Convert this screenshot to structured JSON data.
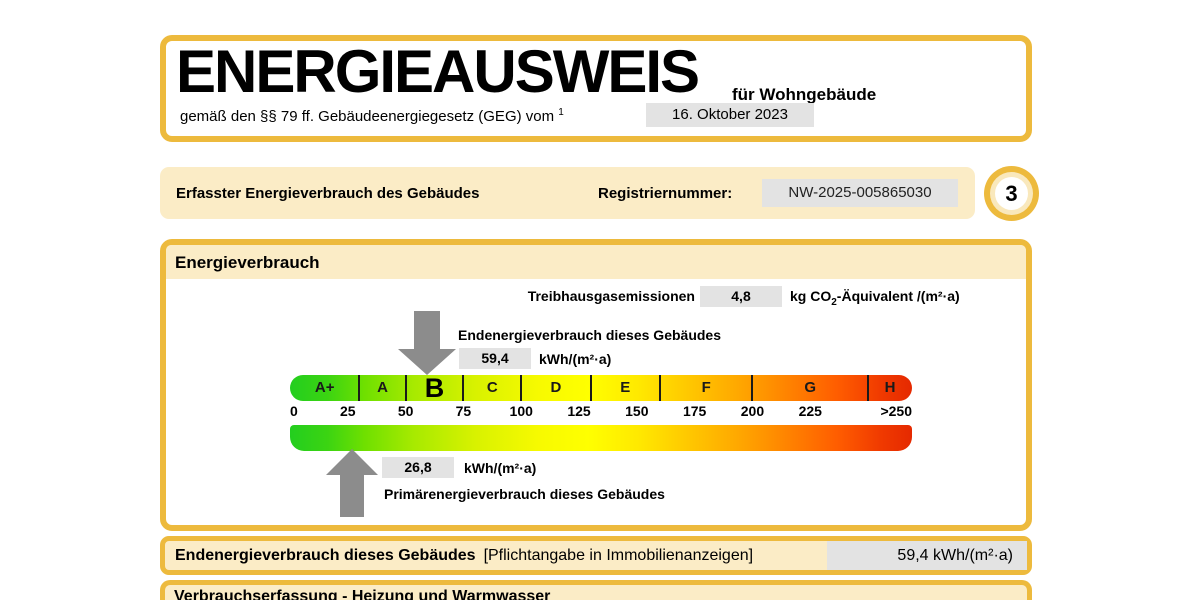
{
  "header": {
    "title": "ENERGIEAUSWEIS",
    "subtitle": "für Wohngebäude",
    "law_text": "gemäß den §§ 79 ff. Gebäudeenergiegesetz (GEG) vom",
    "law_footnote": "1",
    "law_date": "16. Oktober 2023"
  },
  "registration": {
    "label": "Erfasster Energieverbrauch des Gebäudes",
    "number_label": "Registriernummer:",
    "number": "NW-2025-005865030",
    "page_number": "3"
  },
  "section": {
    "title": "Energieverbrauch",
    "ghg_label": "Treibhausgasemissionen",
    "ghg_value": "4,8",
    "ghg_unit_prefix": "kg CO",
    "ghg_unit_sub": "2",
    "ghg_unit_suffix": "-Äquivalent /(m²·a)",
    "end_energy_label": "Endenergieverbrauch dieses Gebäudes",
    "end_energy_value": "59,4",
    "end_energy_unit": "kWh/(m²·a)",
    "primary_energy_value": "26,8",
    "primary_energy_unit": "kWh/(m²·a)",
    "primary_energy_label": "Primärenergieverbrauch dieses Gebäudes"
  },
  "scale": {
    "selected_class": "B",
    "end_energy_value": 59.4,
    "primary_energy_value": 26.8,
    "axis_max": 269,
    "classes": [
      {
        "label": "A+",
        "from": 0,
        "to": 30
      },
      {
        "label": "A",
        "from": 30,
        "to": 50
      },
      {
        "label": "B",
        "from": 50,
        "to": 75
      },
      {
        "label": "C",
        "from": 75,
        "to": 100
      },
      {
        "label": "D",
        "from": 100,
        "to": 130
      },
      {
        "label": "E",
        "from": 130,
        "to": 160
      },
      {
        "label": "F",
        "from": 160,
        "to": 200
      },
      {
        "label": "G",
        "from": 200,
        "to": 250
      },
      {
        "label": "H",
        "from": 250,
        "to": 269
      }
    ],
    "ticks": [
      {
        "label": "0",
        "value": 0,
        "align": "left"
      },
      {
        "label": "25",
        "value": 25,
        "align": "center"
      },
      {
        "label": "50",
        "value": 50,
        "align": "center"
      },
      {
        "label": "75",
        "value": 75,
        "align": "center"
      },
      {
        "label": "100",
        "value": 100,
        "align": "center"
      },
      {
        "label": "125",
        "value": 125,
        "align": "center"
      },
      {
        "label": "150",
        "value": 150,
        "align": "center"
      },
      {
        "label": "175",
        "value": 175,
        "align": "center"
      },
      {
        "label": "200",
        "value": 200,
        "align": "center"
      },
      {
        "label": "225",
        "value": 225,
        "align": "center"
      },
      {
        "label": ">250",
        "value": 269,
        "align": "right"
      }
    ]
  },
  "info_row": {
    "label": "Endenergieverbrauch dieses Gebäudes",
    "bracket": "[Pflichtangabe in Immobilienanzeigen]",
    "value": "59,4 kWh/(m²·a)"
  },
  "next_section": {
    "title": "Verbrauchserfassung - Heizung und Warmwasser"
  },
  "colors": {
    "gold_border": "#EDBA3D",
    "cream_background": "#FBECC6",
    "value_field_gray": "#E3E3E3",
    "arrow_gray": "#8C8C8C",
    "scale_green": "#23CE1F",
    "scale_yellow": "#FFFF00",
    "scale_red": "#E52900"
  }
}
